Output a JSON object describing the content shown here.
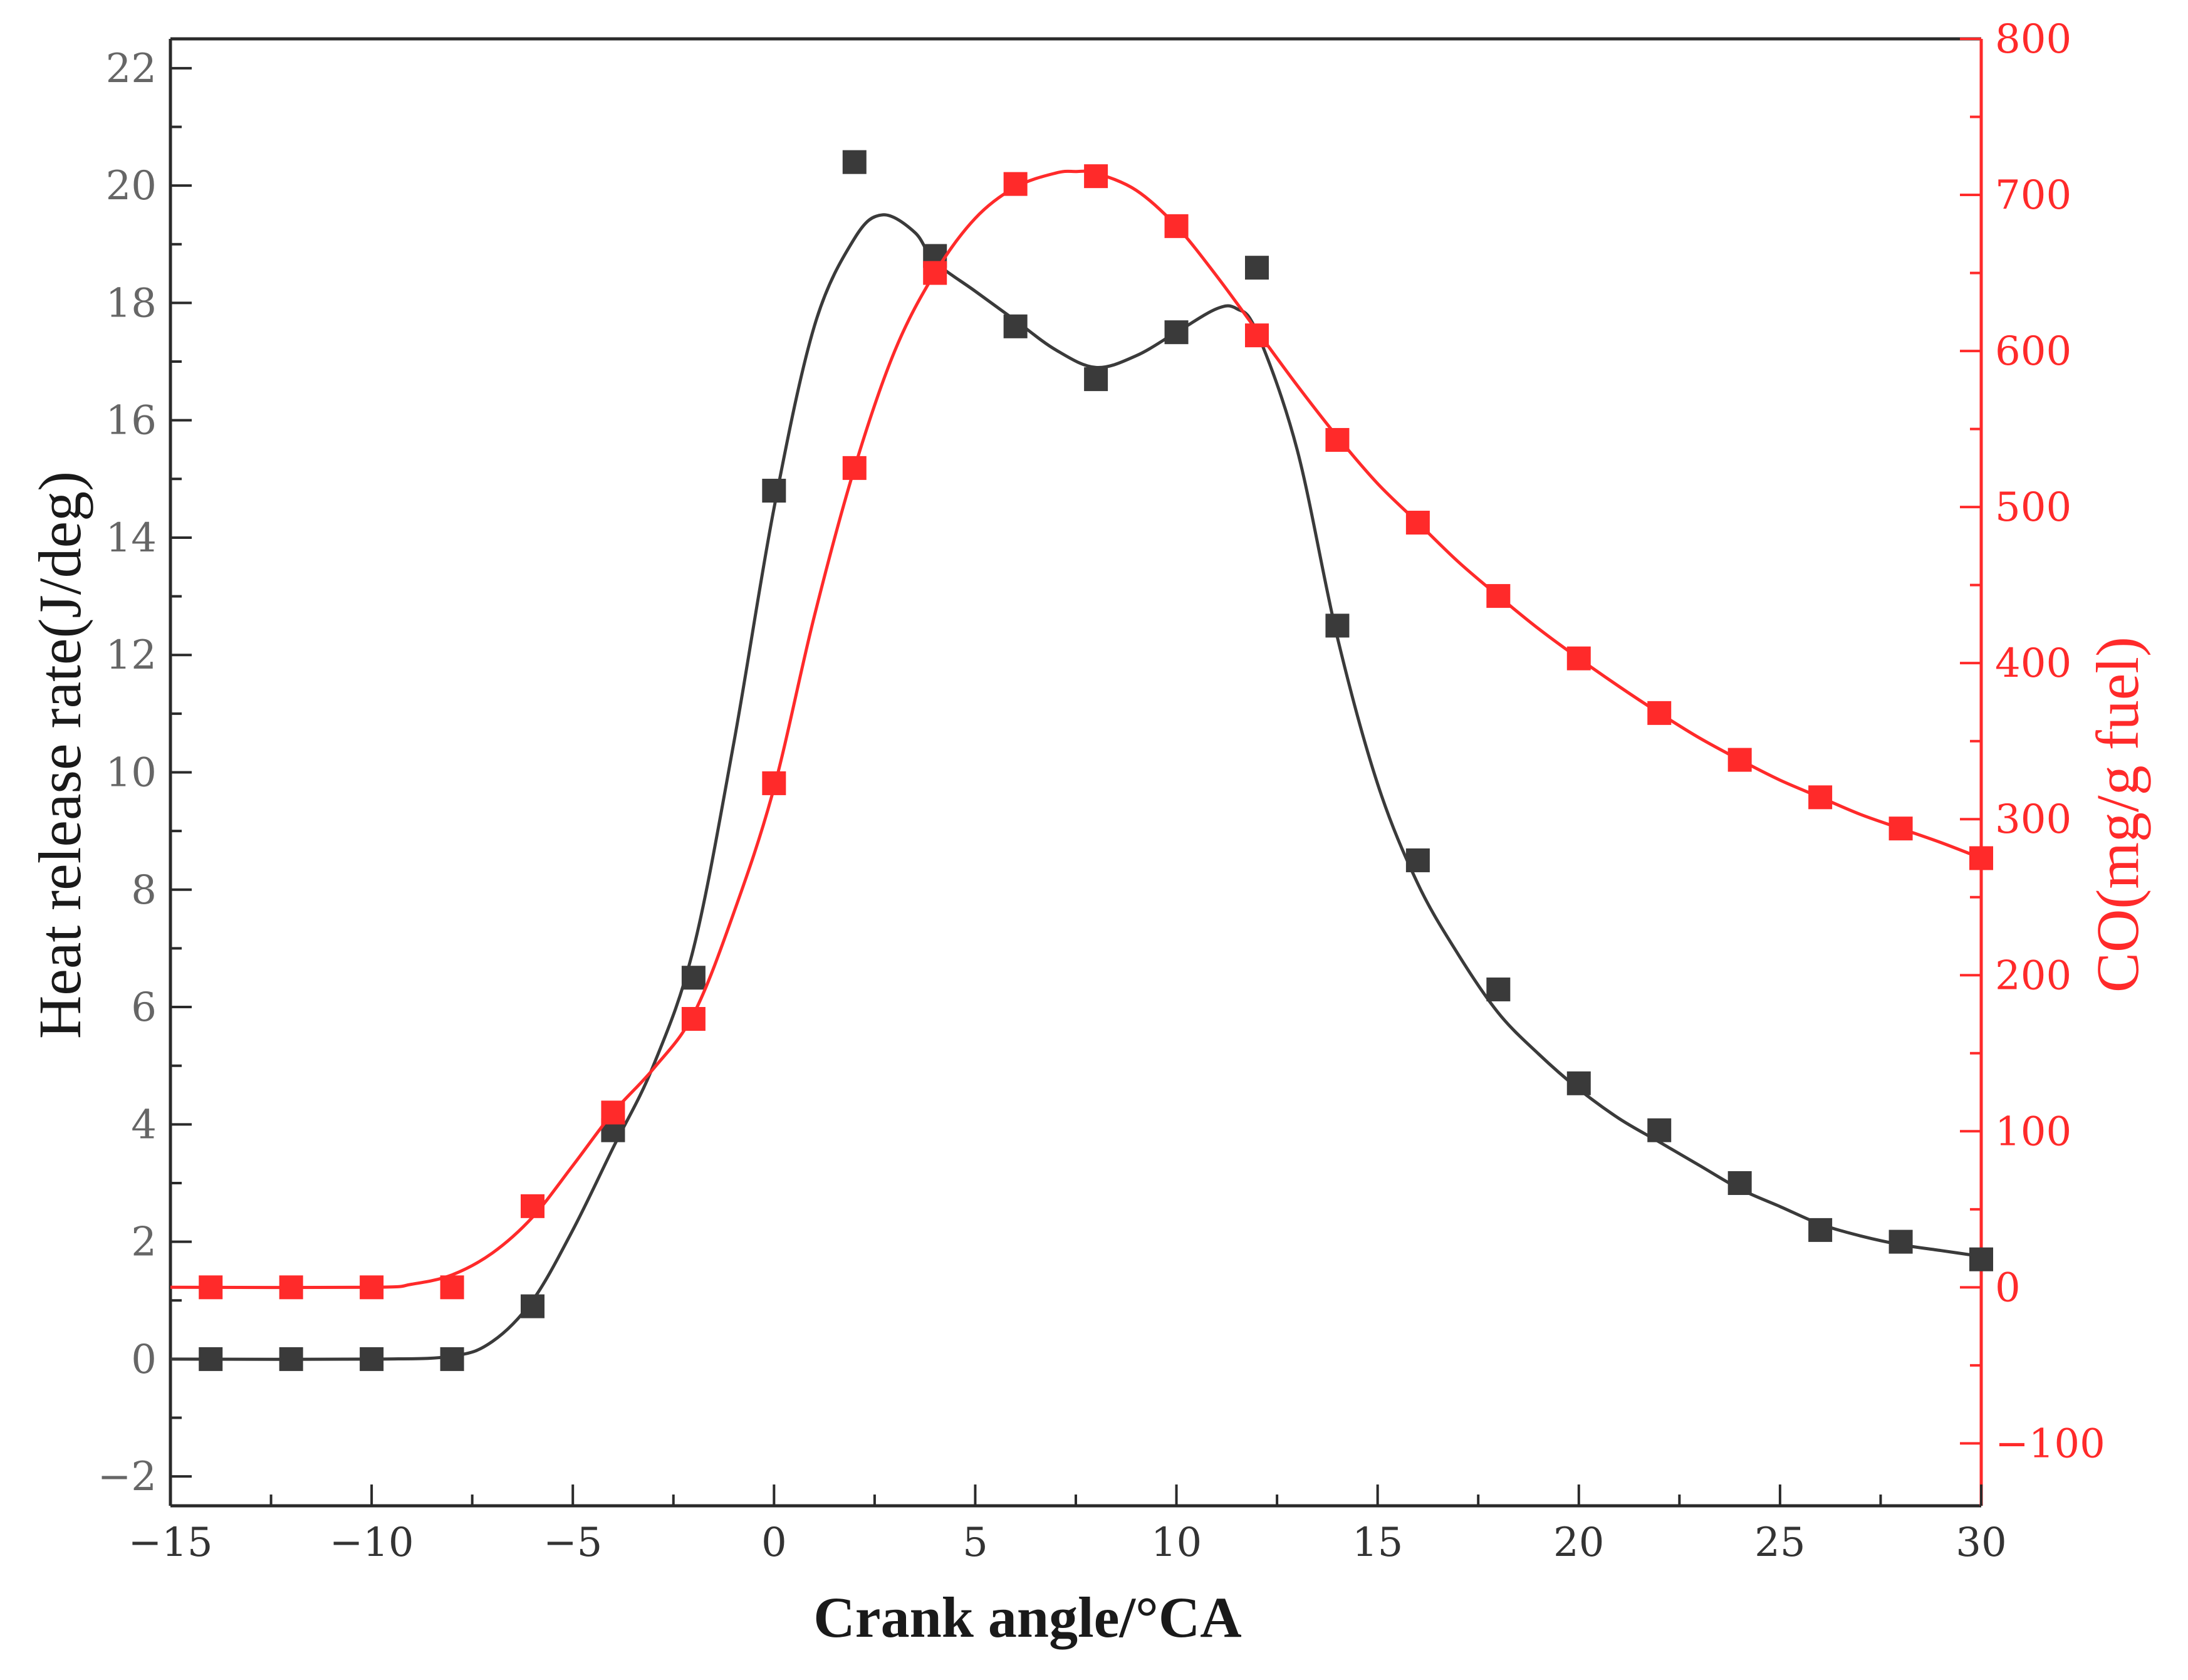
{
  "chart_data": {
    "type": "scatter",
    "title": "",
    "xlabel": "Crank angle/°CA",
    "ylabel": "Heat release rate(J/deg)",
    "y2label": "CO(mg/g fuel)",
    "xlim": [
      -15,
      30
    ],
    "ylim": [
      -2.5,
      22.5
    ],
    "y2lim": [
      -140,
      800
    ],
    "x_ticks": [
      -15,
      -10,
      -5,
      0,
      5,
      10,
      15,
      20,
      25,
      30
    ],
    "x_tick_labels": [
      "−15",
      "−10",
      "−5",
      "0",
      "5",
      "10",
      "15",
      "20",
      "25",
      "30"
    ],
    "y_ticks": [
      -2,
      0,
      2,
      4,
      6,
      8,
      10,
      12,
      14,
      16,
      18,
      20,
      22
    ],
    "y_tick_labels": [
      "−2",
      "0",
      "2",
      "4",
      "6",
      "8",
      "10",
      "12",
      "14",
      "16",
      "18",
      "20",
      "22"
    ],
    "y2_ticks": [
      -100,
      0,
      100,
      200,
      300,
      400,
      500,
      600,
      700,
      800
    ],
    "y2_tick_labels": [
      "−100",
      "0",
      "100",
      "200",
      "300",
      "400",
      "500",
      "600",
      "700",
      "800"
    ],
    "grid": false,
    "colors": {
      "heat": "#3a3a3a",
      "co": "#ff2a2a",
      "frame": "#2a2a2a",
      "y_tick_text": "#666666",
      "x_tick_text": "#333333"
    },
    "series": [
      {
        "name": "Heat release rate",
        "axis": "left",
        "marker": "square",
        "x": [
          -14,
          -12,
          -10,
          -8,
          -6,
          -4,
          -2,
          0,
          2,
          4,
          6,
          8,
          10,
          12,
          14,
          16,
          18,
          20,
          22,
          24,
          26,
          28,
          30
        ],
        "values": [
          0,
          0,
          0,
          0,
          0.9,
          3.9,
          6.5,
          14.8,
          20.4,
          18.8,
          17.6,
          16.7,
          17.5,
          18.6,
          12.5,
          8.5,
          6.3,
          4.7,
          3.9,
          3.0,
          2.2,
          2.0,
          1.7
        ],
        "fit": {
          "x": [
            -15,
            -10,
            -8,
            -7,
            -6,
            -5,
            -4,
            -3,
            -2,
            -1,
            0,
            1,
            2,
            2.7,
            3.5,
            4,
            5,
            6,
            7,
            8,
            9,
            10,
            11,
            11.5,
            12,
            13,
            14,
            15,
            16,
            17,
            18,
            19,
            20,
            21,
            22,
            23,
            24,
            25,
            26,
            27,
            28,
            29,
            30
          ],
          "values": [
            0,
            0,
            0.05,
            0.3,
            1.0,
            2.2,
            3.6,
            5.0,
            7.0,
            10.5,
            14.5,
            17.6,
            19.1,
            19.5,
            19.2,
            18.7,
            18.2,
            17.7,
            17.2,
            16.9,
            17.1,
            17.5,
            17.9,
            17.9,
            17.5,
            15.5,
            12.3,
            9.8,
            8.1,
            6.9,
            5.9,
            5.2,
            4.6,
            4.1,
            3.7,
            3.3,
            2.9,
            2.6,
            2.3,
            2.1,
            1.95,
            1.85,
            1.75
          ]
        }
      },
      {
        "name": "CO",
        "axis": "right",
        "marker": "square",
        "x": [
          -14,
          -12,
          -10,
          -8,
          -6,
          -4,
          -2,
          0,
          2,
          4,
          6,
          8,
          10,
          12,
          14,
          16,
          18,
          20,
          22,
          24,
          26,
          28,
          30
        ],
        "values": [
          0,
          0,
          0,
          0,
          52,
          112,
          172,
          323,
          525,
          650,
          707,
          712,
          680,
          610,
          543,
          490,
          443,
          403,
          368,
          338,
          314,
          294,
          275
        ],
        "fit": {
          "x": [
            -15,
            -10,
            -9,
            -8,
            -7,
            -6,
            -5,
            -4,
            -3,
            -2,
            -1,
            0,
            1,
            2,
            3,
            4,
            5,
            6,
            7,
            7.5,
            8,
            9,
            10,
            11,
            12,
            13,
            14,
            15,
            16,
            17,
            18,
            19,
            20,
            21,
            22,
            23,
            24,
            25,
            26,
            27,
            28,
            29,
            30
          ],
          "values": [
            0,
            0,
            2,
            8,
            22,
            45,
            78,
            112,
            140,
            175,
            240,
            320,
            430,
            525,
            600,
            650,
            685,
            705,
            714,
            715,
            714,
            703,
            680,
            648,
            613,
            578,
            545,
            515,
            490,
            465,
            443,
            422,
            403,
            385,
            368,
            352,
            338,
            325,
            314,
            303,
            294,
            285,
            275
          ]
        }
      }
    ]
  }
}
